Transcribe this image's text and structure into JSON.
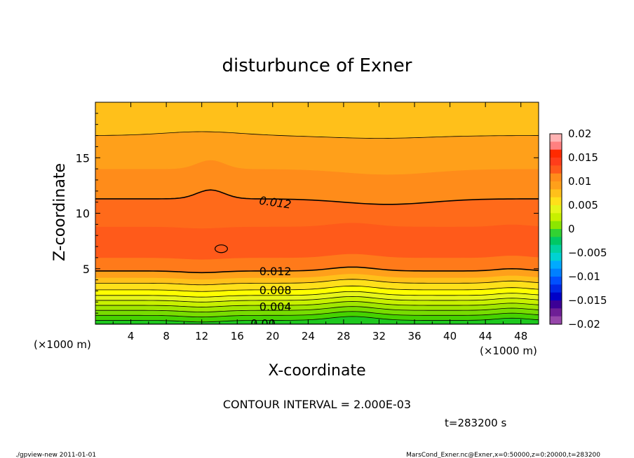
{
  "chart_data": {
    "type": "contour",
    "title": "disturbunce of Exner",
    "xlabel": "X-coordinate",
    "ylabel": "Z-coordinate",
    "x_unit": "(×1000 m)",
    "x_unit_right": "(×1000 m)",
    "xlim": [
      0,
      50
    ],
    "ylim": [
      0,
      20
    ],
    "x_ticks": [
      "4",
      "8",
      "12",
      "16",
      "20",
      "24",
      "28",
      "32",
      "36",
      "40",
      "44",
      "48"
    ],
    "y_ticks": [
      "5",
      "10",
      "15"
    ],
    "contour_interval_text": "CONTOUR INTERVAL = 2.000E-03",
    "time_text": "t=283200 s",
    "contour_labels": [
      {
        "text": "0.012",
        "x": 18.5,
        "z": 11.2
      },
      {
        "text": "0.012",
        "x": 18.5,
        "z": 4.8
      },
      {
        "text": "0.008",
        "x": 18.5,
        "z": 3.1
      },
      {
        "text": "0.004",
        "x": 18.5,
        "z": 1.6
      },
      {
        "text": "0.00",
        "x": 17.5,
        "z": 0.1
      }
    ],
    "colorbar": {
      "ticks": [
        "0.02",
        "0.015",
        "0.01",
        "0.005",
        "0",
        "−0.005",
        "−0.01",
        "−0.015",
        "−0.02"
      ],
      "range": [
        -0.02,
        0.02
      ],
      "colors_top_to_bottom": [
        "#ffb3b3",
        "#ff8080",
        "#ff2a00",
        "#ff3d1a",
        "#ff5a1a",
        "#ff8c1a",
        "#ffa01a",
        "#ffc01a",
        "#ffe01a",
        "#e6f51a",
        "#c8f000",
        "#8ce600",
        "#32d232",
        "#00c864",
        "#00d2a0",
        "#00d2d2",
        "#00aaff",
        "#0080ff",
        "#0050ff",
        "#0028e6",
        "#0000c8",
        "#3c0096",
        "#6e1e96",
        "#9646aa"
      ]
    },
    "bands": [
      {
        "from": 0.0,
        "to": 0.35,
        "color": "#1ec81e"
      },
      {
        "from": 0.35,
        "to": 0.8,
        "color": "#46d200"
      },
      {
        "from": 0.8,
        "to": 1.25,
        "color": "#78dc00"
      },
      {
        "from": 1.25,
        "to": 1.7,
        "color": "#a0e600"
      },
      {
        "from": 1.7,
        "to": 2.15,
        "color": "#c8f000"
      },
      {
        "from": 2.15,
        "to": 2.6,
        "color": "#e6f51a"
      },
      {
        "from": 2.6,
        "to": 3.1,
        "color": "#ffff00"
      },
      {
        "from": 3.1,
        "to": 3.7,
        "color": "#ffe01a"
      },
      {
        "from": 3.7,
        "to": 4.2,
        "color": "#ffc01a"
      },
      {
        "from": 4.2,
        "to": 4.8,
        "color": "#ffa01a"
      },
      {
        "from": 4.8,
        "to": 6.0,
        "color": "#ff7a1a"
      },
      {
        "from": 6.0,
        "to": 8.8,
        "color": "#ff5a1a"
      },
      {
        "from": 8.8,
        "to": 11.3,
        "color": "#ff6a1a"
      },
      {
        "from": 11.3,
        "to": 14.0,
        "color": "#ff8c1a"
      },
      {
        "from": 14.0,
        "to": 17.0,
        "color": "#ffa01a"
      },
      {
        "from": 17.0,
        "to": 20.0,
        "color": "#ffc01a"
      }
    ],
    "contours_z": [
      0.0,
      0.35,
      0.8,
      1.25,
      1.7,
      2.15,
      2.6,
      3.1,
      3.7,
      4.8,
      11.3,
      17.0
    ],
    "closed_contour": {
      "x": 14.2,
      "z": 6.8,
      "rx": 0.7,
      "rz": 0.35
    }
  },
  "footer": {
    "left": "./gpview-new   2011-01-01",
    "right": "MarsCond_Exner.nc@Exner,x=0:50000,z=0:20000,t=283200"
  },
  "colors": {
    "background": "#ffffff",
    "frame": "#000000",
    "contour_line": "#000000"
  }
}
